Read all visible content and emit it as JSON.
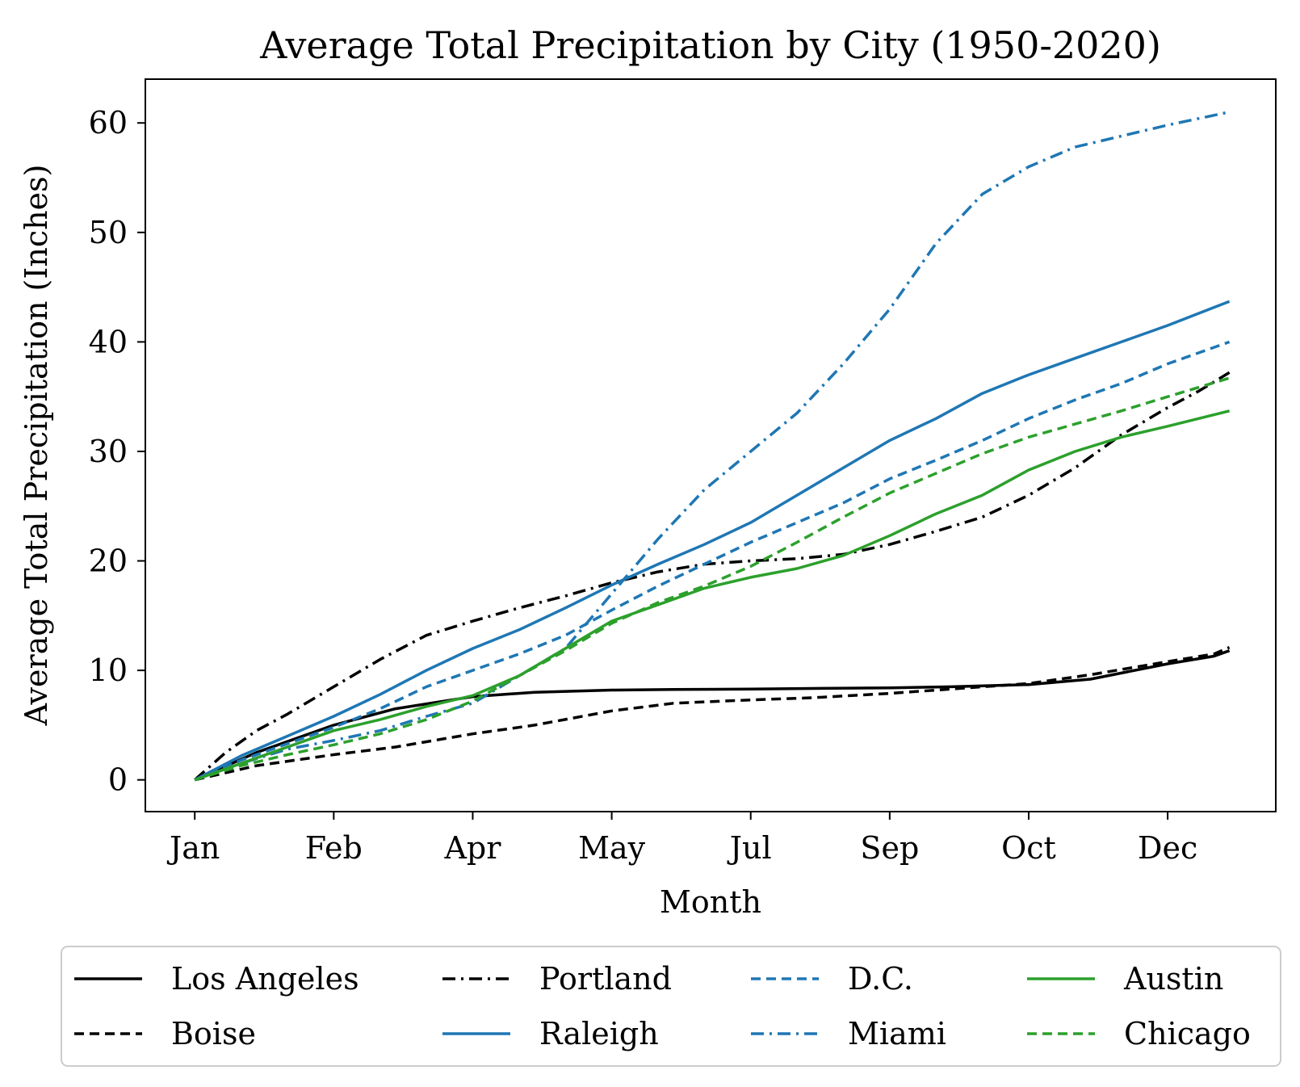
{
  "chart_data": {
    "type": "line",
    "title": "Average Total Precipitation by City (1950-2020)",
    "xlabel": "Month",
    "ylabel": "Average Total Precipitation (Inches)",
    "x_tick_labels": [
      "Jan",
      "Feb",
      "Apr",
      "May",
      "Jul",
      "Sep",
      "Oct",
      "Dec"
    ],
    "x_tick_days": [
      1,
      46,
      91,
      136,
      181,
      226,
      271,
      316
    ],
    "y_ticks": [
      0,
      10,
      20,
      30,
      40,
      50,
      60
    ],
    "xlim": [
      -15,
      351
    ],
    "ylim": [
      -2.9,
      64
    ],
    "grid": false,
    "legend_position": "below plot",
    "legend_columns": 4,
    "series": [
      {
        "name": "Los Angeles",
        "color": "#000000",
        "style": "solid",
        "x": [
          1,
          21,
          46,
          66,
          91,
          111,
          136,
          156,
          181,
          201,
          226,
          246,
          271,
          291,
          316,
          331,
          336
        ],
        "y": [
          0,
          2.5,
          5.0,
          6.5,
          7.6,
          8.0,
          8.2,
          8.25,
          8.3,
          8.35,
          8.4,
          8.5,
          8.7,
          9.2,
          10.6,
          11.3,
          11.8
        ]
      },
      {
        "name": "Boise",
        "color": "#000000",
        "style": "dashed",
        "x": [
          1,
          21,
          46,
          66,
          91,
          111,
          136,
          156,
          181,
          201,
          226,
          246,
          271,
          291,
          316,
          331,
          336
        ],
        "y": [
          0,
          1.3,
          2.3,
          3.0,
          4.2,
          5.0,
          6.3,
          7.0,
          7.3,
          7.5,
          7.9,
          8.3,
          8.8,
          9.6,
          10.8,
          11.5,
          12.1
        ]
      },
      {
        "name": "Portland",
        "color": "#000000",
        "style": "dashdot",
        "x": [
          1,
          11,
          21,
          31,
          46,
          61,
          76,
          91,
          106,
          121,
          136,
          151,
          166,
          181,
          196,
          211,
          226,
          241,
          256,
          271,
          286,
          301,
          316,
          326,
          336
        ],
        "y": [
          0,
          2.5,
          4.5,
          6.0,
          8.5,
          11.0,
          13.2,
          14.5,
          15.7,
          16.8,
          18.0,
          19.0,
          19.7,
          20.0,
          20.2,
          20.6,
          21.5,
          22.7,
          24.0,
          26.0,
          28.5,
          31.5,
          34.0,
          35.5,
          37.2
        ]
      },
      {
        "name": "Raleigh",
        "color": "#1f77b4",
        "style": "solid",
        "x": [
          1,
          16,
          31,
          46,
          61,
          76,
          91,
          106,
          121,
          136,
          151,
          166,
          181,
          196,
          211,
          226,
          241,
          256,
          271,
          286,
          301,
          316,
          336
        ],
        "y": [
          0,
          2.2,
          4.0,
          5.8,
          7.8,
          10.0,
          12.0,
          13.7,
          15.7,
          17.8,
          19.7,
          21.5,
          23.5,
          26.0,
          28.5,
          31.0,
          33.0,
          35.3,
          37.0,
          38.5,
          40.0,
          41.5,
          43.7
        ]
      },
      {
        "name": "D.C.",
        "color": "#1f77b4",
        "style": "dashed",
        "x": [
          1,
          16,
          31,
          46,
          61,
          76,
          91,
          106,
          121,
          136,
          151,
          166,
          181,
          196,
          211,
          226,
          241,
          256,
          271,
          286,
          301,
          316,
          336
        ],
        "y": [
          0,
          1.8,
          3.3,
          4.8,
          6.5,
          8.5,
          10.0,
          11.5,
          13.2,
          15.5,
          17.7,
          19.7,
          21.7,
          23.5,
          25.3,
          27.5,
          29.2,
          31.0,
          33.0,
          34.7,
          36.2,
          38.0,
          40.0
        ]
      },
      {
        "name": "Miami",
        "color": "#1f77b4",
        "style": "dashdot",
        "x": [
          1,
          16,
          31,
          46,
          61,
          76,
          91,
          106,
          121,
          136,
          151,
          166,
          181,
          196,
          211,
          226,
          241,
          256,
          271,
          286,
          301,
          316,
          336
        ],
        "y": [
          0,
          1.5,
          2.8,
          3.6,
          4.5,
          5.8,
          7.0,
          9.5,
          12.0,
          17.0,
          22.0,
          26.5,
          30.0,
          33.5,
          38.0,
          43.0,
          49.0,
          53.5,
          56.0,
          57.8,
          58.8,
          59.8,
          61.0
        ]
      },
      {
        "name": "Austin",
        "color": "#2ca02c",
        "style": "solid",
        "x": [
          1,
          16,
          31,
          46,
          61,
          76,
          91,
          106,
          121,
          136,
          151,
          166,
          181,
          196,
          211,
          226,
          241,
          256,
          271,
          286,
          301,
          316,
          336
        ],
        "y": [
          0,
          1.5,
          3.0,
          4.5,
          5.5,
          6.7,
          7.7,
          9.5,
          12.0,
          14.5,
          16.0,
          17.5,
          18.5,
          19.3,
          20.5,
          22.3,
          24.3,
          26.0,
          28.3,
          30.0,
          31.3,
          32.3,
          33.7
        ]
      },
      {
        "name": "Chicago",
        "color": "#2ca02c",
        "style": "dashed",
        "x": [
          1,
          16,
          31,
          46,
          61,
          76,
          91,
          106,
          121,
          136,
          151,
          166,
          181,
          196,
          211,
          226,
          241,
          256,
          271,
          286,
          301,
          316,
          336
        ],
        "y": [
          0,
          1.3,
          2.3,
          3.2,
          4.2,
          5.5,
          7.2,
          9.5,
          11.8,
          14.3,
          16.2,
          17.7,
          19.5,
          21.7,
          24.0,
          26.2,
          28.0,
          29.8,
          31.3,
          32.5,
          33.7,
          35.0,
          36.7
        ]
      }
    ]
  }
}
